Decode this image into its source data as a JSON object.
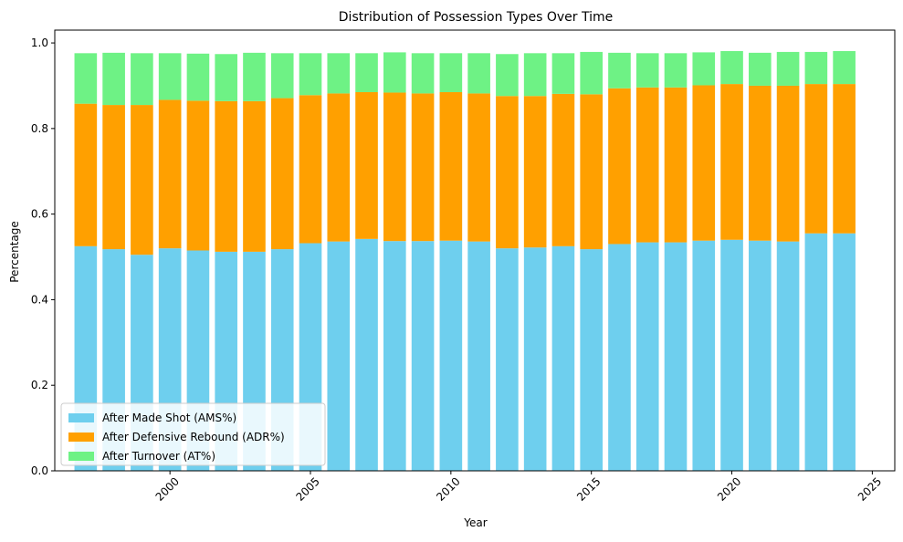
{
  "chart_data": {
    "type": "bar",
    "stacked": true,
    "title": "Distribution of Possession Types Over Time",
    "xlabel": "Year",
    "ylabel": "Percentage",
    "xlim": [
      1995.9,
      2025.8
    ],
    "ylim": [
      0,
      1.03
    ],
    "xticks": [
      2000,
      2005,
      2010,
      2015,
      2020,
      2025
    ],
    "yticks": [
      0.0,
      0.2,
      0.4,
      0.6,
      0.8,
      1.0
    ],
    "xtick_labels": [
      "2000",
      "2005",
      "2010",
      "2015",
      "2020",
      "2025"
    ],
    "ytick_labels": [
      "0.0",
      "0.2",
      "0.4",
      "0.6",
      "0.8",
      "1.0"
    ],
    "grid": false,
    "legend_position": "lower-left",
    "x": [
      1997,
      1998,
      1999,
      2000,
      2001,
      2002,
      2003,
      2004,
      2005,
      2006,
      2007,
      2008,
      2009,
      2010,
      2011,
      2012,
      2013,
      2014,
      2015,
      2016,
      2017,
      2018,
      2019,
      2020,
      2021,
      2022,
      2023,
      2024
    ],
    "series": [
      {
        "name": "After Made Shot (AMS%)",
        "color": "#6ecfee",
        "values": [
          0.525,
          0.518,
          0.505,
          0.52,
          0.515,
          0.512,
          0.512,
          0.518,
          0.532,
          0.536,
          0.542,
          0.537,
          0.537,
          0.538,
          0.536,
          0.52,
          0.522,
          0.525,
          0.518,
          0.53,
          0.534,
          0.534,
          0.538,
          0.54,
          0.538,
          0.536,
          0.555,
          0.555
        ]
      },
      {
        "name": "After Defensive Rebound (ADR%)",
        "color": "#ffa000",
        "values": [
          0.333,
          0.337,
          0.35,
          0.347,
          0.35,
          0.352,
          0.352,
          0.353,
          0.346,
          0.346,
          0.343,
          0.347,
          0.345,
          0.347,
          0.346,
          0.356,
          0.354,
          0.356,
          0.362,
          0.364,
          0.362,
          0.362,
          0.363,
          0.364,
          0.362,
          0.364,
          0.349,
          0.349
        ]
      },
      {
        "name": "After Turnover (AT%)",
        "color": "#6ef285",
        "values": [
          0.118,
          0.122,
          0.121,
          0.109,
          0.11,
          0.11,
          0.113,
          0.105,
          0.098,
          0.094,
          0.091,
          0.094,
          0.094,
          0.091,
          0.094,
          0.098,
          0.1,
          0.095,
          0.099,
          0.083,
          0.08,
          0.08,
          0.077,
          0.077,
          0.077,
          0.079,
          0.075,
          0.077
        ]
      }
    ]
  }
}
